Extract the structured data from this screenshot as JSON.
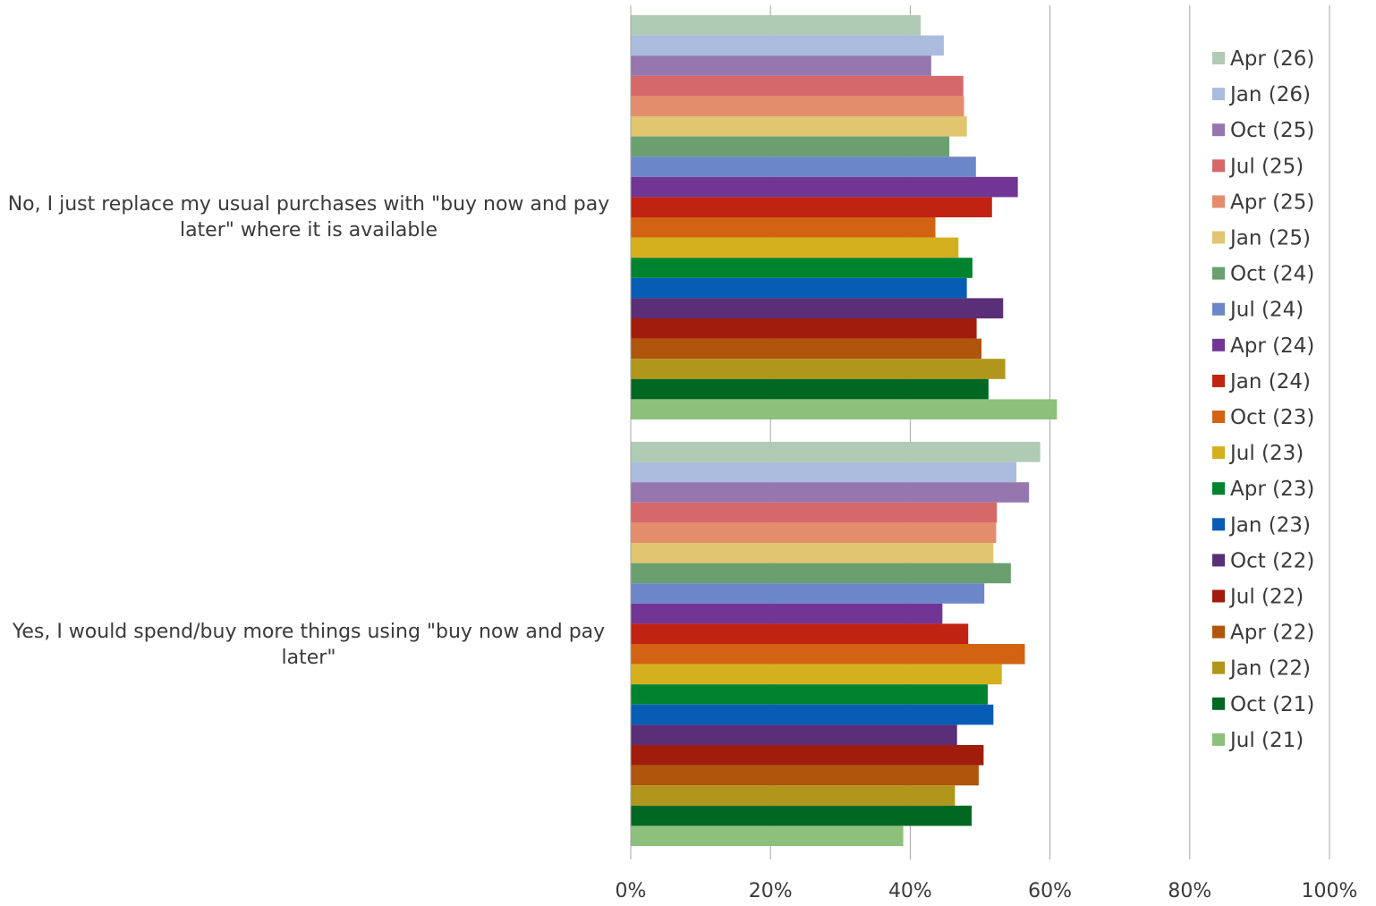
{
  "chart_data": {
    "type": "bar",
    "orientation": "horizontal",
    "categories": [
      "No, I just replace my usual purchases with \"buy now and pay later\" where it is available",
      "Yes, I would spend/buy more things using \"buy now and pay later\""
    ],
    "xlim": [
      0,
      100
    ],
    "x_ticks": [
      "0%",
      "20%",
      "40%",
      "60%",
      "80%",
      "100%"
    ],
    "grid": true,
    "legend_position": "right",
    "series": [
      {
        "name": "Apr (26)",
        "color": "#b0cbb3",
        "values": [
          41.5,
          58.6
        ]
      },
      {
        "name": "Jan (26)",
        "color": "#abbbdd",
        "values": [
          44.8,
          55.2
        ]
      },
      {
        "name": "Oct (25)",
        "color": "#9676ae",
        "values": [
          43.0,
          57.0
        ]
      },
      {
        "name": "Jul (25)",
        "color": "#d5696a",
        "values": [
          47.6,
          52.4
        ]
      },
      {
        "name": "Apr (25)",
        "color": "#e38d6d",
        "values": [
          47.7,
          52.3
        ]
      },
      {
        "name": "Jan (25)",
        "color": "#e2c56f",
        "values": [
          48.1,
          51.9
        ]
      },
      {
        "name": "Oct (24)",
        "color": "#6aa070",
        "values": [
          45.6,
          54.4
        ]
      },
      {
        "name": "Jul (24)",
        "color": "#6b87c8",
        "values": [
          49.4,
          50.6
        ]
      },
      {
        "name": "Apr (24)",
        "color": "#713695",
        "values": [
          55.4,
          44.6
        ]
      },
      {
        "name": "Jan (24)",
        "color": "#c02312",
        "values": [
          51.7,
          48.3
        ]
      },
      {
        "name": "Oct (23)",
        "color": "#d26313",
        "values": [
          43.6,
          56.4
        ]
      },
      {
        "name": "Jul (23)",
        "color": "#d4b01e",
        "values": [
          46.9,
          53.1
        ]
      },
      {
        "name": "Apr (23)",
        "color": "#00832f",
        "values": [
          48.9,
          51.1
        ]
      },
      {
        "name": "Jan (23)",
        "color": "#075db6",
        "values": [
          48.1,
          51.9
        ]
      },
      {
        "name": "Oct (22)",
        "color": "#5a2f78",
        "values": [
          53.3,
          46.7
        ]
      },
      {
        "name": "Jul (22)",
        "color": "#a11c0c",
        "values": [
          49.5,
          50.5
        ]
      },
      {
        "name": "Apr (22)",
        "color": "#b0550c",
        "values": [
          50.2,
          49.8
        ]
      },
      {
        "name": "Jan (22)",
        "color": "#b0961a",
        "values": [
          53.6,
          46.4
        ]
      },
      {
        "name": "Oct (21)",
        "color": "#006823",
        "values": [
          51.2,
          48.8
        ]
      },
      {
        "name": "Jul (21)",
        "color": "#8cc07b",
        "values": [
          61.0,
          39.0
        ]
      }
    ]
  }
}
